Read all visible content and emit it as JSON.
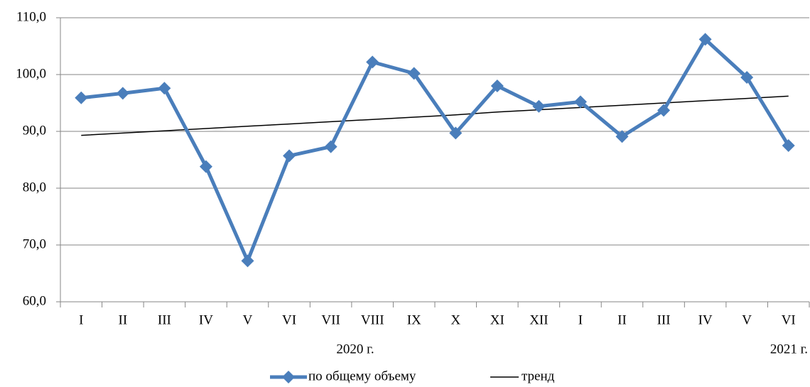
{
  "chart_data": {
    "type": "line",
    "categories": [
      "I",
      "II",
      "III",
      "IV",
      "V",
      "VI",
      "VII",
      "VIII",
      "IX",
      "X",
      "XI",
      "XII",
      "I",
      "II",
      "III",
      "IV",
      "V",
      "VI"
    ],
    "annotations": [
      "2020 г.",
      "2021 г."
    ],
    "series": [
      {
        "name": "по общему объему",
        "color": "#4a7ebb",
        "marker": "diamond",
        "values": [
          95.9,
          96.7,
          97.6,
          83.8,
          67.2,
          85.7,
          87.3,
          102.2,
          100.2,
          89.7,
          98.0,
          94.4,
          95.2,
          89.1,
          93.7,
          106.2,
          99.5,
          87.5
        ]
      },
      {
        "name": "тренд",
        "color": "#000000",
        "values": [
          89.3,
          89.7,
          90.1,
          90.5,
          90.9,
          91.3,
          91.7,
          92.1,
          92.5,
          92.9,
          93.4,
          93.8,
          94.2,
          94.6,
          95.0,
          95.4,
          95.8,
          96.2
        ]
      }
    ],
    "ylim": [
      60,
      110
    ],
    "yticks": [
      {
        "value": 60,
        "label": "60,0"
      },
      {
        "value": 70,
        "label": "70,0"
      },
      {
        "value": 80,
        "label": "80,0"
      },
      {
        "value": 90,
        "label": "90,0"
      },
      {
        "value": 100,
        "label": "100,0"
      },
      {
        "value": 110,
        "label": "110,0"
      }
    ],
    "grid": true,
    "legend": "bottom"
  }
}
